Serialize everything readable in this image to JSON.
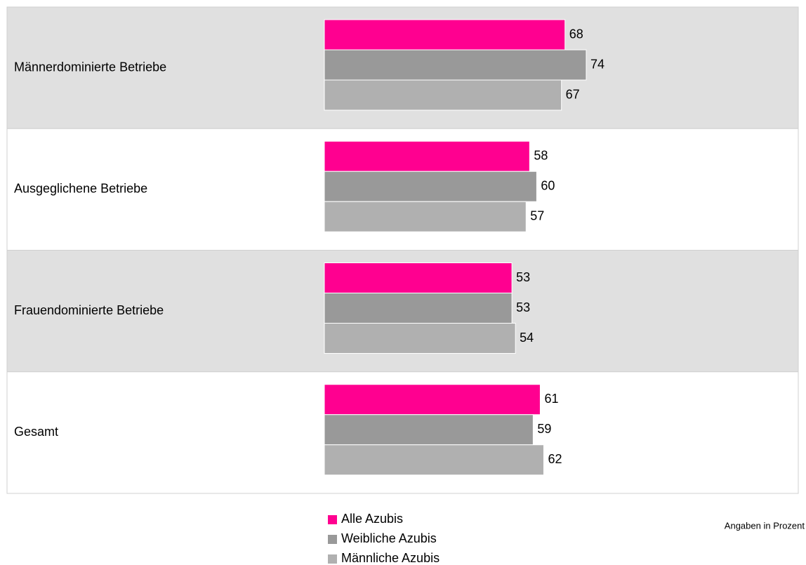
{
  "chart_data": {
    "type": "hbar",
    "categories": [
      "Männerdominierte Betriebe",
      "Ausgeglichene Betriebe",
      "Frauendominierte Betriebe",
      "Gesamt"
    ],
    "series": [
      {
        "name": "Alle Azubis",
        "color": "#ff0090",
        "values": [
          68,
          58,
          53,
          61
        ]
      },
      {
        "name": "Weibliche Azubis",
        "color": "#999999",
        "values": [
          74,
          60,
          53,
          59
        ]
      },
      {
        "name": "Männliche Azubis",
        "color": "#b0b0b0",
        "values": [
          67,
          57,
          54,
          62
        ]
      }
    ],
    "xlim": [
      0,
      100
    ],
    "note": "Angaben in Prozent"
  }
}
